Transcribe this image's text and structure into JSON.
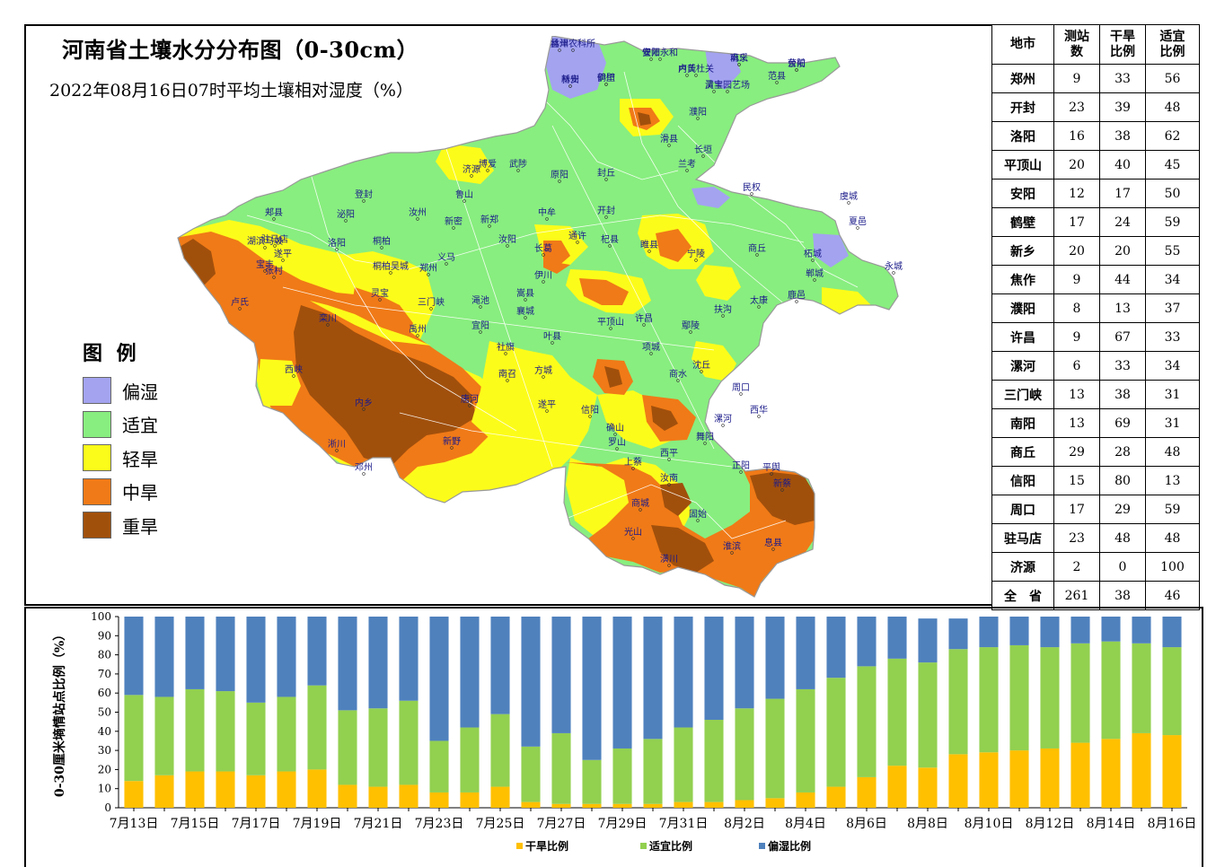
{
  "title": "河南省土壤水分分布图（0-30cm）",
  "subtitle": "2022年08月16日07时平均土壤相对湿度（%）",
  "legend": {
    "title": "图 例",
    "items": [
      {
        "label": "偏湿",
        "color": "#A3A3F0"
      },
      {
        "label": "适宜",
        "color": "#88EE7F"
      },
      {
        "label": "轻旱",
        "color": "#FCFC1A"
      },
      {
        "label": "中旱",
        "color": "#F07A17"
      },
      {
        "label": "重旱",
        "color": "#A1500C"
      }
    ]
  },
  "map_labels": [
    "林州农科所",
    "安阳永和",
    "南乐",
    "台前",
    "林州",
    "鹤壁",
    "内黄",
    "清丰",
    "范县",
    "濮阳",
    "滑县",
    "长垣",
    "济源",
    "博爱",
    "武陟",
    "原阳",
    "封丘",
    "兰考",
    "民权",
    "虞城",
    "夏邑",
    "永城",
    "洛阳",
    "郑州",
    "中牟",
    "开封",
    "通许",
    "杞县",
    "睢县",
    "宁陵",
    "商丘",
    "柘城",
    "卢氏",
    "栾川",
    "西峡",
    "内乡",
    "淅川",
    "邓州",
    "新野",
    "唐河",
    "社旗",
    "南召",
    "方城",
    "叶县",
    "平顶山",
    "许昌",
    "鄢陵",
    "扶沟",
    "太康",
    "鹿邑",
    "郸城",
    "沈丘",
    "项城",
    "商水",
    "周口",
    "西华",
    "漯河",
    "舞阳",
    "西平",
    "上蔡",
    "汝南",
    "正阳",
    "平舆",
    "新蔡",
    "息县",
    "淮滨",
    "固始",
    "商城",
    "光山",
    "潢川",
    "罗山",
    "信阳",
    "确山",
    "驻马店",
    "遂平",
    "泌阳",
    "桐柏",
    "桐柏吴城",
    "灵宝",
    "三门峡",
    "义马",
    "渑池",
    "宜阳",
    "嵩县",
    "伊川",
    "汝阳",
    "汝州",
    "郏县",
    "宝丰",
    "鲁山",
    "登封",
    "新密",
    "新郑",
    "长葛",
    "禹州",
    "襄城",
    "遂平",
    "湖滨马坡",
    "张村",
    "孟津",
    "偃师",
    "巩义",
    "荥阳",
    "新安",
    "伊川",
    "卢氏杜关",
    "灵宝园艺场"
  ],
  "table": {
    "headers": [
      "地市",
      "测站数",
      "干旱比例",
      "适宜比例"
    ],
    "rows": [
      [
        "郑州",
        "9",
        "33",
        "56"
      ],
      [
        "开封",
        "23",
        "39",
        "48"
      ],
      [
        "洛阳",
        "16",
        "38",
        "62"
      ],
      [
        "平顶山",
        "20",
        "40",
        "45"
      ],
      [
        "安阳",
        "12",
        "17",
        "50"
      ],
      [
        "鹤壁",
        "17",
        "24",
        "59"
      ],
      [
        "新乡",
        "20",
        "20",
        "55"
      ],
      [
        "焦作",
        "9",
        "44",
        "34"
      ],
      [
        "濮阳",
        "8",
        "13",
        "37"
      ],
      [
        "许昌",
        "9",
        "67",
        "33"
      ],
      [
        "漯河",
        "6",
        "33",
        "34"
      ],
      [
        "三门峡",
        "13",
        "38",
        "31"
      ],
      [
        "南阳",
        "13",
        "69",
        "31"
      ],
      [
        "商丘",
        "29",
        "28",
        "48"
      ],
      [
        "信阳",
        "15",
        "80",
        "13"
      ],
      [
        "周口",
        "17",
        "29",
        "59"
      ],
      [
        "驻马店",
        "23",
        "48",
        "48"
      ],
      [
        "济源",
        "2",
        "0",
        "100"
      ],
      [
        "全　省",
        "261",
        "38",
        "46"
      ]
    ]
  },
  "chart_data": {
    "type": "bar",
    "stacked": true,
    "categories": [
      "7月13日",
      "7月14日",
      "7月15日",
      "7月16日",
      "7月17日",
      "7月18日",
      "7月19日",
      "7月20日",
      "7月21日",
      "7月22日",
      "7月23日",
      "7月24日",
      "7月25日",
      "7月26日",
      "7月27日",
      "7月28日",
      "7月29日",
      "7月30日",
      "7月31日",
      "8月1日",
      "8月2日",
      "8月3日",
      "8月4日",
      "8月5日",
      "8月6日",
      "8月7日",
      "8月8日",
      "8月9日",
      "8月10日",
      "8月11日",
      "8月12日",
      "8月13日",
      "8月14日",
      "8月15日",
      "8月16日"
    ],
    "tick_labels": [
      "7月13日",
      "7月15日",
      "7月17日",
      "7月19日",
      "7月21日",
      "7月23日",
      "7月25日",
      "7月27日",
      "7月29日",
      "7月31日",
      "8月2日",
      "8月4日",
      "8月6日",
      "8月8日",
      "8月10日",
      "8月12日",
      "8月14日",
      "8月16日"
    ],
    "series": [
      {
        "name": "干旱比例",
        "color": "#FFC000",
        "values": [
          14,
          17,
          19,
          19,
          17,
          19,
          20,
          12,
          11,
          12,
          8,
          8,
          11,
          3,
          2,
          2,
          2,
          2,
          3,
          3,
          4,
          5,
          8,
          11,
          16,
          22,
          21,
          28,
          29,
          30,
          31,
          34,
          36,
          39,
          38
        ]
      },
      {
        "name": "适宜比例",
        "color": "#92D050",
        "values": [
          45,
          41,
          43,
          42,
          38,
          39,
          44,
          39,
          41,
          44,
          27,
          34,
          38,
          29,
          37,
          23,
          29,
          34,
          39,
          43,
          48,
          52,
          54,
          57,
          58,
          56,
          55,
          55,
          55,
          55,
          53,
          52,
          51,
          47,
          46
        ]
      },
      {
        "name": "偏湿比例",
        "color": "#4F81BD",
        "values": [
          41,
          42,
          38,
          39,
          45,
          42,
          36,
          49,
          48,
          44,
          65,
          58,
          51,
          68,
          61,
          75,
          69,
          64,
          58,
          54,
          48,
          43,
          38,
          32,
          26,
          22,
          23,
          16,
          16,
          15,
          16,
          14,
          13,
          14,
          16
        ]
      }
    ],
    "ylabel": "0-30厘米墒情站点比例（%）",
    "ylim": [
      0,
      100
    ],
    "yticks": [
      0,
      10,
      20,
      30,
      40,
      50,
      60,
      70,
      80,
      90,
      100
    ]
  }
}
